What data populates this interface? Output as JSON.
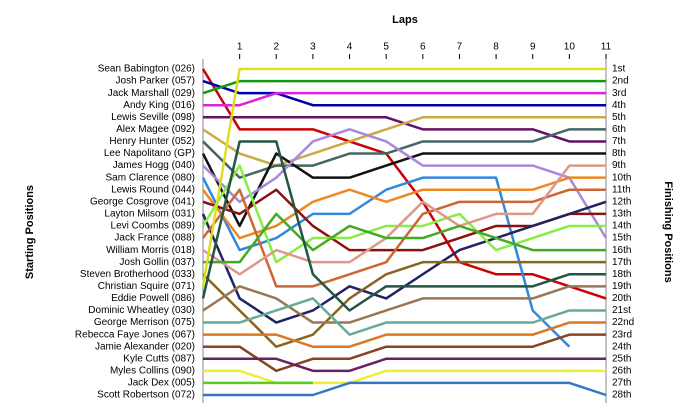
{
  "chart_data": {
    "type": "lap_chart",
    "x_label": "Laps",
    "y_label": "Starting Positions",
    "y2_label": "Finishing Positions",
    "x": [
      0,
      1,
      2,
      3,
      4,
      5,
      6,
      7,
      8,
      9,
      10,
      11
    ],
    "xlim": [
      0,
      11
    ],
    "xticks": [
      1,
      2,
      3,
      4,
      5,
      6,
      7,
      8,
      9,
      10,
      11
    ],
    "ylim": [
      1,
      28
    ],
    "finishing_positions": [
      "1st",
      "2nd",
      "3rd",
      "4th",
      "5th",
      "6th",
      "7th",
      "8th",
      "9th",
      "10th",
      "11th",
      "12th",
      "13th",
      "14th",
      "15th",
      "16th",
      "17th",
      "18th",
      "19th",
      "20th",
      "21st",
      "22nd",
      "23rd",
      "24th",
      "25th",
      "26th",
      "27th",
      "28th"
    ],
    "series": [
      {
        "name": "Sean Babington (026)",
        "color": "#cc0000",
        "values": [
          1,
          6,
          6,
          6,
          7,
          8,
          12,
          17,
          18,
          18,
          19,
          20
        ]
      },
      {
        "name": "Josh Parker (057)",
        "color": "#0000aa",
        "values": [
          2,
          3,
          3,
          4,
          4,
          4,
          4,
          4,
          4,
          4,
          4,
          4
        ]
      },
      {
        "name": "Jack Marshall (029)",
        "color": "#119911",
        "values": [
          3,
          2,
          2,
          2,
          2,
          2,
          2,
          2,
          2,
          2,
          2,
          2
        ]
      },
      {
        "name": "Andy King (016)",
        "color": "#dd22dd",
        "values": [
          4,
          4,
          3,
          3,
          3,
          3,
          3,
          3,
          3,
          3,
          3,
          3
        ]
      },
      {
        "name": "Lewis Seville (098)",
        "color": "#661166",
        "values": [
          5,
          5,
          5,
          5,
          5,
          5,
          6,
          6,
          6,
          6,
          7,
          7
        ]
      },
      {
        "name": "Alex Magee (092)",
        "color": "#ccaa44",
        "values": [
          6,
          8,
          9,
          8,
          7,
          6,
          5,
          5,
          5,
          5,
          5,
          5
        ]
      },
      {
        "name": "Henry Hunter (052)",
        "color": "#446666",
        "values": [
          7,
          10,
          9,
          9,
          8,
          8,
          7,
          7,
          7,
          7,
          6,
          6
        ]
      },
      {
        "name": "Lee Napolitano (GP)",
        "color": "#111111",
        "values": [
          8,
          14,
          8,
          10,
          10,
          9,
          8,
          8,
          8,
          8,
          8,
          8
        ]
      },
      {
        "name": "James Hogg (040)",
        "color": "#aa88dd",
        "values": [
          9,
          12,
          10,
          7,
          6,
          7,
          9,
          9,
          9,
          9,
          10,
          15
        ]
      },
      {
        "name": "Sam Clarence (080)",
        "color": "#3388dd",
        "values": [
          10,
          16,
          15,
          13,
          13,
          11,
          10,
          10,
          10,
          21,
          24,
          null
        ]
      },
      {
        "name": "Lewis Round (044)",
        "color": "#ee8822",
        "values": [
          11,
          15,
          14,
          12,
          11,
          12,
          11,
          11,
          11,
          11,
          10,
          10
        ]
      },
      {
        "name": "George Cosgrove (041)",
        "color": "#881111",
        "values": [
          12,
          13,
          11,
          14,
          16,
          16,
          16,
          15,
          14,
          14,
          13,
          13
        ]
      },
      {
        "name": "Layton Milsom (031)",
        "color": "#222266",
        "values": [
          13,
          20,
          22,
          21,
          19,
          20,
          18,
          16,
          15,
          14,
          13,
          12
        ]
      },
      {
        "name": "Levi Coombs (089)",
        "color": "#88ee44",
        "values": [
          14,
          9,
          17,
          15,
          15,
          14,
          14,
          13,
          16,
          15,
          14,
          14
        ]
      },
      {
        "name": "Jack France (088)",
        "color": "#cc6633",
        "values": [
          15,
          11,
          19,
          19,
          18,
          17,
          13,
          12,
          12,
          12,
          11,
          11
        ]
      },
      {
        "name": "William Morris (018)",
        "color": "#dd9988",
        "values": [
          16,
          18,
          16,
          17,
          17,
          15,
          12,
          14,
          13,
          13,
          9,
          9
        ]
      },
      {
        "name": "Josh Gollin (037)",
        "color": "#44aa22",
        "values": [
          17,
          17,
          13,
          16,
          14,
          15,
          15,
          14,
          15,
          16,
          16,
          16
        ]
      },
      {
        "name": "Steven Brotherhood (033)",
        "color": "#886622",
        "values": [
          18,
          21,
          24,
          23,
          20,
          18,
          17,
          17,
          17,
          17,
          17,
          17
        ]
      },
      {
        "name": "Christian Squire (071)",
        "color": "#dddd22",
        "values": [
          19,
          1,
          1,
          1,
          1,
          1,
          1,
          1,
          1,
          1,
          1,
          1
        ]
      },
      {
        "name": "Eddie Powell (086)",
        "color": "#225544",
        "values": [
          20,
          7,
          7,
          18,
          21,
          19,
          19,
          19,
          19,
          19,
          18,
          18
        ]
      },
      {
        "name": "Dominic Wheatley (030)",
        "color": "#997755",
        "values": [
          21,
          19,
          20,
          22,
          22,
          21,
          20,
          20,
          20,
          20,
          19,
          19
        ]
      },
      {
        "name": "George Merrison (075)",
        "color": "#66aa99",
        "values": [
          22,
          22,
          21,
          20,
          23,
          22,
          22,
          22,
          22,
          22,
          21,
          21
        ]
      },
      {
        "name": "Rebecca Faye Jones (067)",
        "color": "#dd7722",
        "values": [
          23,
          23,
          23,
          24,
          24,
          23,
          23,
          23,
          23,
          23,
          22,
          22
        ]
      },
      {
        "name": "Jamie Alexander (020)",
        "color": "#884422",
        "values": [
          24,
          24,
          26,
          25,
          25,
          24,
          24,
          24,
          24,
          24,
          23,
          23
        ]
      },
      {
        "name": "Kyle Cutts (087)",
        "color": "#662266",
        "values": [
          25,
          25,
          25,
          26,
          26,
          25,
          25,
          25,
          25,
          25,
          25,
          25
        ]
      },
      {
        "name": "Myles Collins (090)",
        "color": "#eeee33",
        "values": [
          26,
          26,
          27,
          27,
          27,
          26,
          26,
          26,
          26,
          26,
          26,
          26
        ]
      },
      {
        "name": "Jack Dex (005)",
        "color": "#55cc22",
        "values": [
          27,
          27,
          27,
          27,
          null,
          null,
          null,
          null,
          null,
          null,
          null,
          null
        ]
      },
      {
        "name": "Scott Robertson (072)",
        "color": "#3377cc",
        "values": [
          28,
          28,
          28,
          28,
          27,
          27,
          27,
          27,
          27,
          27,
          27,
          28
        ]
      }
    ]
  }
}
